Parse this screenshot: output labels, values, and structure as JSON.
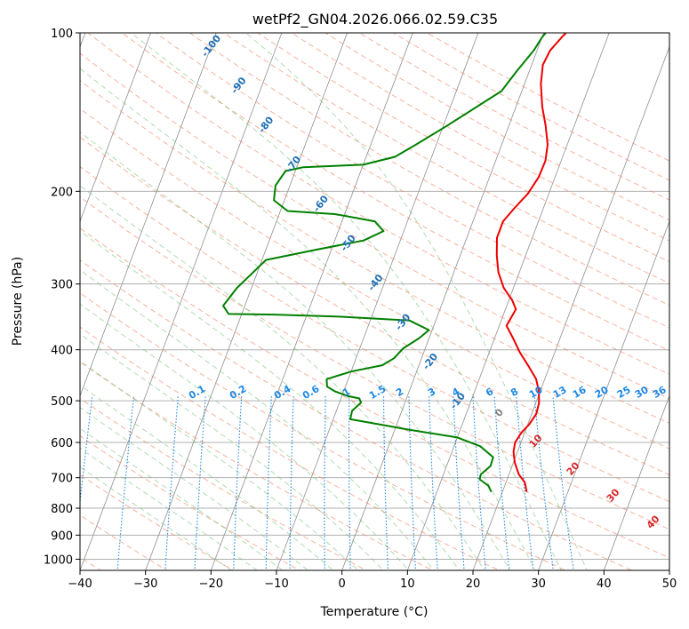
{
  "chart_data": {
    "type": "line",
    "title": "wetPf2_GN04.2026.066.02.59.C35",
    "xlabel": "Temperature (°C)",
    "ylabel": "Pressure (hPa)",
    "xlim": [
      -40,
      50
    ],
    "ylim": [
      1050,
      100
    ],
    "y_scale": "log",
    "x_ticks": [
      -40,
      -30,
      -20,
      -10,
      0,
      10,
      20,
      30,
      40,
      50
    ],
    "x_tick_labels": [
      "−40",
      "−30",
      "−20",
      "−10",
      "0",
      "10",
      "20",
      "30",
      "40",
      "50"
    ],
    "y_ticks": [
      100,
      200,
      300,
      400,
      500,
      600,
      700,
      800,
      900,
      1000
    ],
    "y_tick_labels": [
      "100",
      "200",
      "300",
      "400",
      "500",
      "600",
      "700",
      "800",
      "900",
      "1000"
    ],
    "grid": true,
    "colors": {
      "temperature": "#ee0000",
      "dewpoint": "#008000",
      "dry_adiabat": "#f08a6a",
      "moist_adiabat": "#6fbf6f",
      "mixing_ratio": "#1e88e5",
      "isotherm": "#9a9a9a",
      "label_blue": "#1f6fb5",
      "label_red": "#d62728",
      "label_mix": "#1e88e5",
      "label_gray": "#808080"
    },
    "series": [
      {
        "key": "temperature",
        "points": [
          {
            "t": 23.7,
            "p": 745
          },
          {
            "t": 22.9,
            "p": 715
          },
          {
            "t": 21.5,
            "p": 690
          },
          {
            "t": 20.2,
            "p": 655
          },
          {
            "t": 19.4,
            "p": 625
          },
          {
            "t": 19.1,
            "p": 600
          },
          {
            "t": 19.5,
            "p": 575
          },
          {
            "t": 20.2,
            "p": 555
          },
          {
            "t": 20.7,
            "p": 530
          },
          {
            "t": 20.5,
            "p": 505
          },
          {
            "t": 19.8,
            "p": 480
          },
          {
            "t": 18.7,
            "p": 455
          },
          {
            "t": 16.8,
            "p": 430
          },
          {
            "t": 14.7,
            "p": 405
          },
          {
            "t": 12.8,
            "p": 380
          },
          {
            "t": 11.1,
            "p": 360
          },
          {
            "t": 11.4,
            "p": 345
          },
          {
            "t": 11.6,
            "p": 335
          },
          {
            "t": 10.5,
            "p": 322
          },
          {
            "t": 8.5,
            "p": 305
          },
          {
            "t": 6.8,
            "p": 285
          },
          {
            "t": 5.6,
            "p": 265
          },
          {
            "t": 4.6,
            "p": 245
          },
          {
            "t": 4.6,
            "p": 228
          },
          {
            "t": 5.6,
            "p": 215
          },
          {
            "t": 6.8,
            "p": 202
          },
          {
            "t": 7.5,
            "p": 188
          },
          {
            "t": 7.6,
            "p": 175
          },
          {
            "t": 7.0,
            "p": 163
          },
          {
            "t": 5.6,
            "p": 150
          },
          {
            "t": 4.0,
            "p": 138
          },
          {
            "t": 2.5,
            "p": 125
          },
          {
            "t": 1.7,
            "p": 115
          },
          {
            "t": 2.0,
            "p": 108
          },
          {
            "t": 3.0,
            "p": 102
          },
          {
            "t": 3.4,
            "p": 100
          }
        ]
      },
      {
        "key": "dewpoint",
        "points": [
          {
            "t": 18.3,
            "p": 745
          },
          {
            "t": 17.5,
            "p": 725
          },
          {
            "t": 15.8,
            "p": 705
          },
          {
            "t": 15.7,
            "p": 690
          },
          {
            "t": 16.7,
            "p": 665
          },
          {
            "t": 16.6,
            "p": 640
          },
          {
            "t": 14.0,
            "p": 610
          },
          {
            "t": 10.0,
            "p": 587
          },
          {
            "t": 2.0,
            "p": 567
          },
          {
            "t": -3.5,
            "p": 552
          },
          {
            "t": -7.4,
            "p": 542
          },
          {
            "t": -7.6,
            "p": 522
          },
          {
            "t": -6.7,
            "p": 504
          },
          {
            "t": -7.2,
            "p": 495
          },
          {
            "t": -9.0,
            "p": 490
          },
          {
            "t": -11.3,
            "p": 480
          },
          {
            "t": -12.8,
            "p": 470
          },
          {
            "t": -13.3,
            "p": 455
          },
          {
            "t": -10.0,
            "p": 440
          },
          {
            "t": -5.6,
            "p": 428
          },
          {
            "t": -4.2,
            "p": 415
          },
          {
            "t": -3.4,
            "p": 398
          },
          {
            "t": -1.5,
            "p": 380
          },
          {
            "t": -0.5,
            "p": 367
          },
          {
            "t": -4.0,
            "p": 352
          },
          {
            "t": -15.0,
            "p": 346
          },
          {
            "t": -25.0,
            "p": 343
          },
          {
            "t": -32.0,
            "p": 342
          },
          {
            "t": -33.3,
            "p": 330
          },
          {
            "t": -32.2,
            "p": 305
          },
          {
            "t": -30.8,
            "p": 287
          },
          {
            "t": -29.4,
            "p": 270
          },
          {
            "t": -22.2,
            "p": 258
          },
          {
            "t": -15.6,
            "p": 248
          },
          {
            "t": -13.1,
            "p": 238
          },
          {
            "t": -15.0,
            "p": 228
          },
          {
            "t": -21.5,
            "p": 221
          },
          {
            "t": -28.9,
            "p": 218
          },
          {
            "t": -31.6,
            "p": 208
          },
          {
            "t": -32.2,
            "p": 195
          },
          {
            "t": -31.5,
            "p": 183
          },
          {
            "t": -29.0,
            "p": 180
          },
          {
            "t": -20.0,
            "p": 178
          },
          {
            "t": -15.6,
            "p": 172
          },
          {
            "t": -13.1,
            "p": 163
          },
          {
            "t": -9.4,
            "p": 150
          },
          {
            "t": -3.1,
            "p": 129
          },
          {
            "t": -1.9,
            "p": 118
          },
          {
            "t": -0.5,
            "p": 108
          },
          {
            "t": 0.0,
            "p": 102
          },
          {
            "t": 0.3,
            "p": 100
          }
        ]
      }
    ],
    "dry_adiabat_labels": [
      "-100",
      "-90",
      "-80",
      "-70",
      "-60",
      "-50",
      "-40",
      "-30",
      "-20",
      "-10"
    ],
    "moist_labels": [
      "0",
      "10",
      "20",
      "30",
      "40"
    ],
    "mixing_ratio_labels": [
      "0.1",
      "0.2",
      "0.4",
      "0.6",
      "1",
      "1.5",
      "2",
      "3",
      "4",
      "6",
      "8",
      "10",
      "13",
      "16",
      "20",
      "25",
      "30",
      "36"
    ]
  }
}
